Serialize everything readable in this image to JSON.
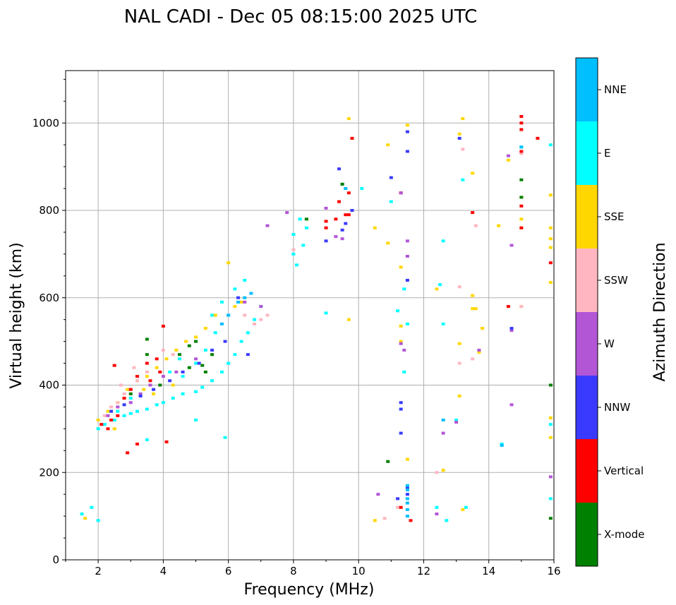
{
  "chart_data": {
    "type": "scatter",
    "title": "NAL CADI - Dec 05 08:15:00 2025 UTC",
    "xlabel": "Frequency (MHz)",
    "ylabel": "Virtual height (km)",
    "xlim": [
      1,
      16
    ],
    "ylim": [
      0,
      1120
    ],
    "xticks": [
      2,
      4,
      6,
      8,
      10,
      12,
      14,
      16
    ],
    "yticks": [
      0,
      200,
      400,
      600,
      800,
      1000
    ],
    "grid": true,
    "colorbar": {
      "label": "Azimuth Direction",
      "categories": [
        {
          "name": "X-mode",
          "color": "#008000"
        },
        {
          "name": "Vertical",
          "color": "#ff0000"
        },
        {
          "name": "NNW",
          "color": "#3a3aff"
        },
        {
          "name": "W",
          "color": "#b256d6"
        },
        {
          "name": "SSW",
          "color": "#ffb6c1"
        },
        {
          "name": "SSE",
          "color": "#ffd700"
        },
        {
          "name": "E",
          "color": "#00ffff"
        },
        {
          "name": "NNE",
          "color": "#00bfff"
        }
      ]
    },
    "series": [
      {
        "name": "E",
        "color": "#00ffff",
        "points": [
          [
            2.0,
            300
          ],
          [
            2.2,
            310
          ],
          [
            2.5,
            320
          ],
          [
            2.8,
            330
          ],
          [
            3.0,
            335
          ],
          [
            3.2,
            340
          ],
          [
            3.5,
            345
          ],
          [
            3.8,
            355
          ],
          [
            4.0,
            360
          ],
          [
            4.3,
            370
          ],
          [
            4.6,
            380
          ],
          [
            5.0,
            385
          ],
          [
            5.2,
            395
          ],
          [
            5.5,
            410
          ],
          [
            5.8,
            430
          ],
          [
            6.0,
            450
          ],
          [
            6.2,
            470
          ],
          [
            6.4,
            500
          ],
          [
            6.6,
            520
          ],
          [
            6.8,
            550
          ],
          [
            7.0,
            580
          ],
          [
            5.5,
            560
          ],
          [
            5.8,
            590
          ],
          [
            6.2,
            620
          ],
          [
            6.5,
            640
          ],
          [
            4.6,
            420
          ],
          [
            5.0,
            450
          ],
          [
            5.3,
            480
          ],
          [
            5.6,
            520
          ],
          [
            4.2,
            430
          ],
          [
            4.5,
            460
          ],
          [
            3.3,
            380
          ],
          [
            3.0,
            370
          ],
          [
            2.6,
            340
          ],
          [
            8.0,
            700
          ],
          [
            8.1,
            675
          ],
          [
            8.3,
            720
          ],
          [
            8.2,
            780
          ],
          [
            8.4,
            760
          ],
          [
            8.0,
            745
          ],
          [
            9.0,
            565
          ],
          [
            10.1,
            850
          ],
          [
            11.0,
            820
          ],
          [
            11.2,
            570
          ],
          [
            11.4,
            620
          ],
          [
            11.4,
            430
          ],
          [
            11.5,
            540
          ],
          [
            12.5,
            630
          ],
          [
            12.6,
            730
          ],
          [
            12.6,
            540
          ],
          [
            12.4,
            120
          ],
          [
            12.7,
            90
          ],
          [
            13.0,
            320
          ],
          [
            13.3,
            120
          ],
          [
            13.2,
            870
          ],
          [
            14.4,
            265
          ],
          [
            15.0,
            945
          ],
          [
            15.9,
            950
          ],
          [
            15.9,
            310
          ],
          [
            15.9,
            140
          ],
          [
            1.5,
            105
          ],
          [
            1.8,
            120
          ],
          [
            2.0,
            90
          ],
          [
            3.5,
            275
          ],
          [
            5.0,
            320
          ],
          [
            5.9,
            280
          ]
        ]
      },
      {
        "name": "SSE",
        "color": "#ffd700",
        "points": [
          [
            2.0,
            320
          ],
          [
            2.3,
            340
          ],
          [
            2.6,
            360
          ],
          [
            2.9,
            390
          ],
          [
            3.2,
            410
          ],
          [
            3.5,
            420
          ],
          [
            3.8,
            440
          ],
          [
            4.1,
            460
          ],
          [
            4.4,
            480
          ],
          [
            4.7,
            500
          ],
          [
            5.0,
            510
          ],
          [
            5.3,
            530
          ],
          [
            5.6,
            560
          ],
          [
            6.2,
            580
          ],
          [
            6.4,
            590
          ],
          [
            2.5,
            300
          ],
          [
            2.8,
            370
          ],
          [
            3.4,
            390
          ],
          [
            3.7,
            380
          ],
          [
            4.3,
            400
          ],
          [
            6.0,
            680
          ],
          [
            1.6,
            95
          ],
          [
            10.5,
            760
          ],
          [
            10.5,
            90
          ],
          [
            10.9,
            725
          ],
          [
            11.3,
            535
          ],
          [
            11.3,
            670
          ],
          [
            11.3,
            500
          ],
          [
            11.5,
            995
          ],
          [
            11.5,
            230
          ],
          [
            12.4,
            620
          ],
          [
            12.6,
            205
          ],
          [
            13.1,
            975
          ],
          [
            13.1,
            495
          ],
          [
            13.1,
            375
          ],
          [
            13.2,
            1010
          ],
          [
            13.5,
            885
          ],
          [
            13.5,
            605
          ],
          [
            13.5,
            575
          ],
          [
            13.6,
            575
          ],
          [
            13.8,
            530
          ],
          [
            13.7,
            475
          ],
          [
            14.3,
            765
          ],
          [
            14.6,
            915
          ],
          [
            15.0,
            580
          ],
          [
            15.0,
            760
          ],
          [
            15.0,
            830
          ],
          [
            15.0,
            780
          ],
          [
            15.9,
            835
          ],
          [
            15.9,
            760
          ],
          [
            15.9,
            735
          ],
          [
            15.9,
            715
          ],
          [
            15.9,
            635
          ],
          [
            15.9,
            325
          ],
          [
            15.9,
            280
          ],
          [
            13.2,
            115
          ],
          [
            9.7,
            1010
          ],
          [
            9.7,
            550
          ],
          [
            10.9,
            950
          ]
        ]
      },
      {
        "name": "SSW",
        "color": "#ffb6c1",
        "points": [
          [
            2.2,
            330
          ],
          [
            2.4,
            350
          ],
          [
            2.6,
            360
          ],
          [
            2.8,
            380
          ],
          [
            3.0,
            390
          ],
          [
            3.2,
            410
          ],
          [
            3.5,
            430
          ],
          [
            4.0,
            480
          ],
          [
            4.3,
            470
          ],
          [
            2.7,
            400
          ],
          [
            3.1,
            440
          ],
          [
            6.8,
            540
          ],
          [
            7.0,
            550
          ],
          [
            7.2,
            560
          ],
          [
            6.5,
            560
          ],
          [
            8.0,
            710
          ],
          [
            10.8,
            95
          ],
          [
            11.2,
            120
          ],
          [
            12.4,
            200
          ],
          [
            13.1,
            625
          ],
          [
            13.1,
            450
          ],
          [
            13.5,
            460
          ],
          [
            13.2,
            940
          ],
          [
            13.6,
            765
          ],
          [
            15.0,
            580
          ],
          [
            15.0,
            930
          ]
        ]
      },
      {
        "name": "Vertical",
        "color": "#ff0000",
        "points": [
          [
            2.1,
            310
          ],
          [
            2.3,
            300
          ],
          [
            2.4,
            320
          ],
          [
            2.6,
            330
          ],
          [
            2.8,
            370
          ],
          [
            3.0,
            390
          ],
          [
            3.2,
            420
          ],
          [
            3.5,
            450
          ],
          [
            3.8,
            460
          ],
          [
            4.0,
            535
          ],
          [
            2.5,
            445
          ],
          [
            2.9,
            245
          ],
          [
            3.2,
            265
          ],
          [
            4.1,
            270
          ],
          [
            3.6,
            410
          ],
          [
            3.9,
            430
          ],
          [
            9.0,
            775
          ],
          [
            9.0,
            760
          ],
          [
            9.3,
            780
          ],
          [
            9.4,
            820
          ],
          [
            9.6,
            790
          ],
          [
            9.7,
            840
          ],
          [
            9.7,
            790
          ],
          [
            9.8,
            965
          ],
          [
            11.3,
            120
          ],
          [
            11.3,
            840
          ],
          [
            11.6,
            90
          ],
          [
            13.5,
            795
          ],
          [
            14.6,
            580
          ],
          [
            15.0,
            760
          ],
          [
            15.0,
            810
          ],
          [
            15.0,
            935
          ],
          [
            15.0,
            985
          ],
          [
            15.0,
            1000
          ],
          [
            15.0,
            1015
          ],
          [
            15.5,
            965
          ],
          [
            15.9,
            680
          ]
        ]
      },
      {
        "name": "W",
        "color": "#b256d6",
        "points": [
          [
            2.3,
            330
          ],
          [
            2.6,
            350
          ],
          [
            3.0,
            360
          ],
          [
            3.3,
            380
          ],
          [
            3.6,
            400
          ],
          [
            4.0,
            420
          ],
          [
            4.4,
            430
          ],
          [
            5.0,
            460
          ],
          [
            6.0,
            560
          ],
          [
            6.5,
            590
          ],
          [
            7.0,
            580
          ],
          [
            9.0,
            805
          ],
          [
            9.3,
            740
          ],
          [
            9.5,
            735
          ],
          [
            10.6,
            150
          ],
          [
            11.3,
            840
          ],
          [
            11.5,
            695
          ],
          [
            11.5,
            730
          ],
          [
            11.3,
            495
          ],
          [
            11.4,
            480
          ],
          [
            12.6,
            290
          ],
          [
            12.4,
            105
          ],
          [
            13.0,
            315
          ],
          [
            13.7,
            480
          ],
          [
            14.6,
            925
          ],
          [
            14.7,
            525
          ],
          [
            14.7,
            720
          ],
          [
            14.7,
            355
          ],
          [
            15.9,
            190
          ],
          [
            7.8,
            795
          ],
          [
            7.2,
            765
          ]
        ]
      },
      {
        "name": "NNW",
        "color": "#3a3aff",
        "points": [
          [
            2.4,
            340
          ],
          [
            2.8,
            355
          ],
          [
            3.3,
            375
          ],
          [
            3.7,
            390
          ],
          [
            4.2,
            410
          ],
          [
            4.6,
            430
          ],
          [
            5.1,
            450
          ],
          [
            5.5,
            480
          ],
          [
            5.9,
            500
          ],
          [
            6.6,
            470
          ],
          [
            6.3,
            600
          ],
          [
            9.0,
            730
          ],
          [
            9.5,
            755
          ],
          [
            9.6,
            770
          ],
          [
            9.8,
            800
          ],
          [
            9.4,
            895
          ],
          [
            11.0,
            875
          ],
          [
            11.2,
            140
          ],
          [
            11.3,
            360
          ],
          [
            11.3,
            345
          ],
          [
            11.3,
            290
          ],
          [
            11.5,
            640
          ],
          [
            11.5,
            935
          ],
          [
            11.5,
            980
          ],
          [
            13.1,
            965
          ],
          [
            14.7,
            530
          ],
          [
            11.5,
            165
          ],
          [
            11.5,
            150
          ]
        ]
      },
      {
        "name": "NNE",
        "color": "#00bfff",
        "points": [
          [
            6.3,
            590
          ],
          [
            6.5,
            600
          ],
          [
            6.7,
            610
          ],
          [
            6.0,
            560
          ],
          [
            5.8,
            540
          ],
          [
            9.5,
            860
          ],
          [
            9.6,
            850
          ],
          [
            11.5,
            170
          ],
          [
            11.5,
            160
          ],
          [
            11.5,
            140
          ],
          [
            11.5,
            130
          ],
          [
            11.5,
            115
          ],
          [
            11.5,
            100
          ],
          [
            12.6,
            320
          ],
          [
            14.4,
            262
          ],
          [
            15.0,
            945
          ]
        ]
      },
      {
        "name": "X-mode",
        "color": "#008000",
        "points": [
          [
            4.8,
            490
          ],
          [
            5.0,
            500
          ],
          [
            5.2,
            445
          ],
          [
            5.3,
            430
          ],
          [
            5.5,
            470
          ],
          [
            4.5,
            470
          ],
          [
            4.8,
            440
          ],
          [
            3.5,
            470
          ],
          [
            3.0,
            380
          ],
          [
            3.9,
            400
          ],
          [
            8.4,
            780
          ],
          [
            9.5,
            860
          ],
          [
            10.9,
            225
          ],
          [
            15.0,
            870
          ],
          [
            15.0,
            830
          ],
          [
            15.9,
            400
          ],
          [
            15.9,
            95
          ],
          [
            3.5,
            505
          ]
        ]
      }
    ]
  }
}
